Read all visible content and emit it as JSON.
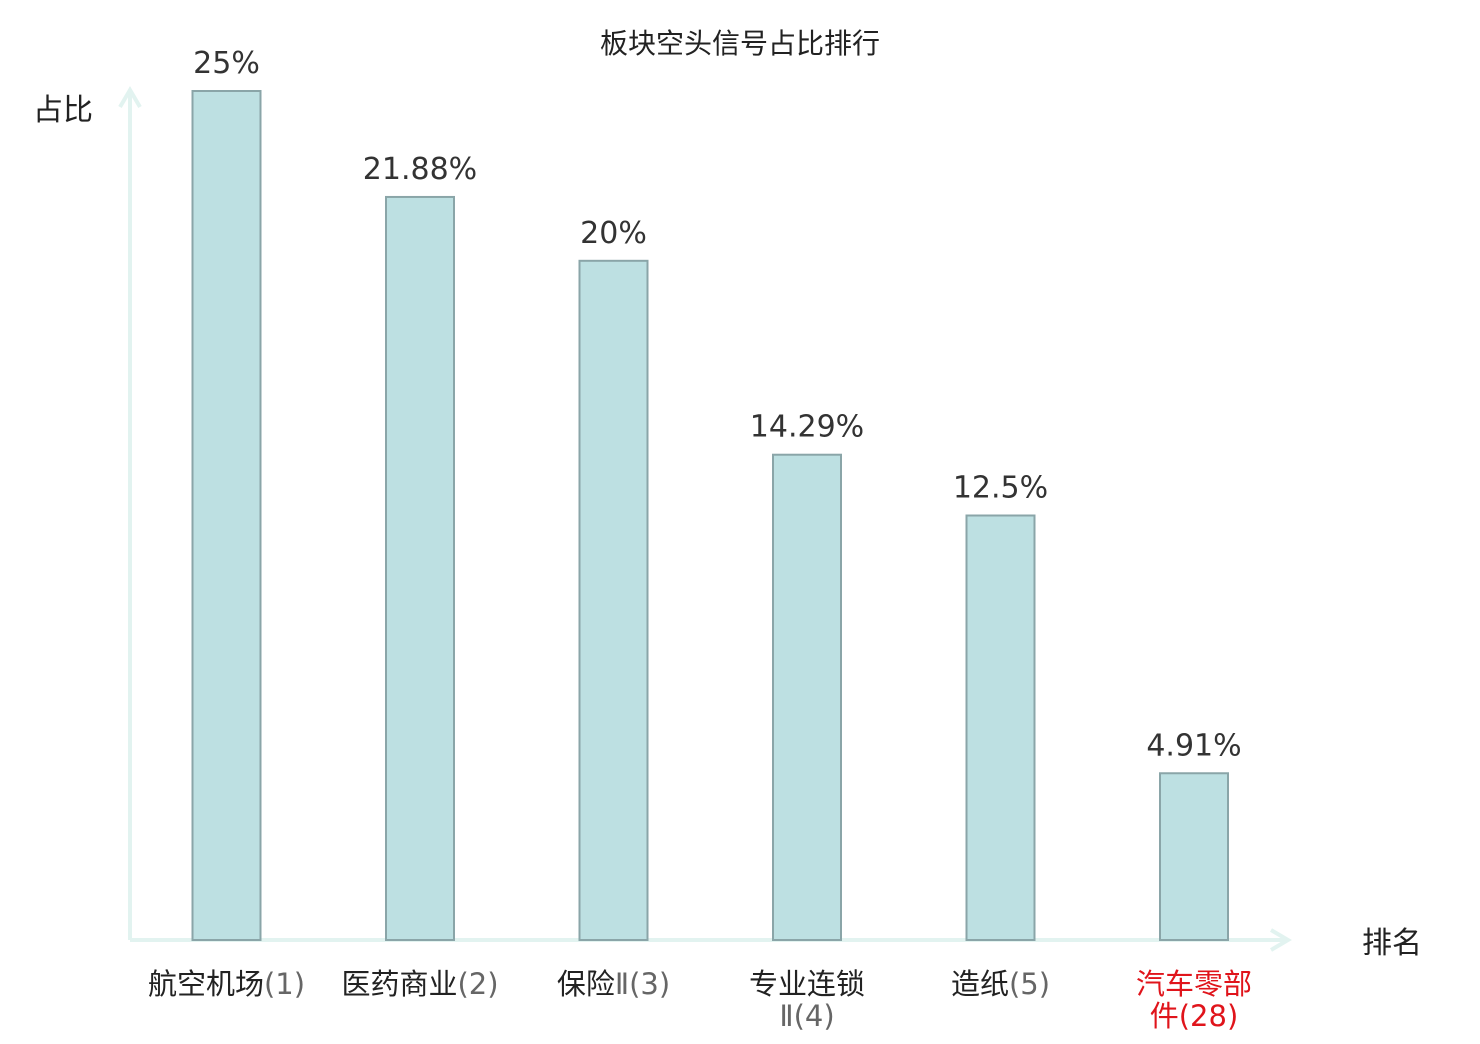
{
  "chart_data": {
    "type": "bar",
    "title": "板块空头信号占比排行",
    "ylabel": "占比",
    "xlabel": "排名",
    "ylim": [
      0,
      25
    ],
    "grid": false,
    "legend": "none",
    "colors": {
      "bar_fill": "#bde0e2",
      "bar_stroke": "#8aa5a8",
      "axis": "#e2f3f0",
      "text": "#222222",
      "value_text": "#333333",
      "highlight": "#e0141b",
      "sub_text": "#666666"
    },
    "categories": [
      {
        "lines": [
          {
            "name": "航空机场",
            "rank": "(1)"
          }
        ],
        "highlight": false
      },
      {
        "lines": [
          {
            "name": "医药商业",
            "rank": "(2)"
          }
        ],
        "highlight": false
      },
      {
        "lines": [
          {
            "name": "保险",
            "rank": "Ⅱ(3)"
          }
        ],
        "highlight": false
      },
      {
        "lines": [
          {
            "name": "专业连锁",
            "rank": ""
          },
          {
            "name": "",
            "rank": "Ⅱ(4)"
          }
        ],
        "highlight": false
      },
      {
        "lines": [
          {
            "name": "造纸",
            "rank": "(5)"
          }
        ],
        "highlight": false
      },
      {
        "lines": [
          {
            "name": "汽车零部",
            "rank": ""
          },
          {
            "name": "件",
            "rank": "(28)"
          }
        ],
        "highlight": true
      }
    ],
    "values": [
      25,
      21.88,
      20,
      14.29,
      12.5,
      4.91
    ],
    "value_labels": [
      "25%",
      "21.88%",
      "20%",
      "14.29%",
      "12.5%",
      "4.91%"
    ]
  }
}
